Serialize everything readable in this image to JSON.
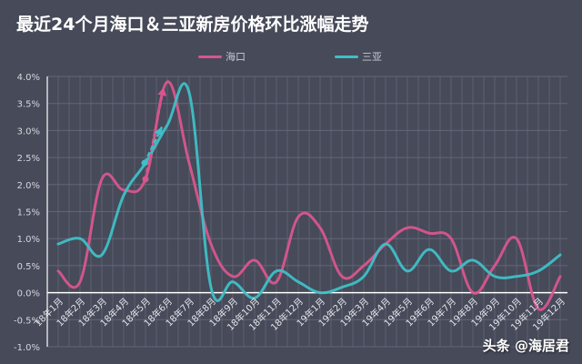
{
  "title": "最近24个月海口＆三亚新房价格环比涨幅走势",
  "legend": [
    {
      "label": "海口",
      "color": "#d9558e"
    },
    {
      "label": "三亚",
      "color": "#3fbfc6"
    }
  ],
  "watermark": "头条 @海居君",
  "chart_data": {
    "type": "line",
    "title": "最近24个月海口＆三亚新房价格环比涨幅走势",
    "xlabel": "",
    "ylabel": "",
    "ylim": [
      -1.0,
      4.0
    ],
    "yticks": [
      "4.0%",
      "3.5%",
      "3.0%",
      "2.5%",
      "2.0%",
      "1.5%",
      "1.0%",
      "0.5%",
      "0.0%",
      "-0.5%",
      "-1.0%"
    ],
    "grid": true,
    "legend_position": "top",
    "categories": [
      "18年1月",
      "18年2月",
      "18年3月",
      "18年4月",
      "18年5月",
      "18年6月",
      "18年7月",
      "18年8月",
      "18年9月",
      "18年10月",
      "18年11月",
      "18年12月",
      "19年1月",
      "19年2月",
      "19年3月",
      "19年4月",
      "19年5月",
      "19年6月",
      "19年7月",
      "19年8月",
      "19年9月",
      "19年10月",
      "19年11月",
      "19年12月"
    ],
    "series": [
      {
        "name": "海口",
        "color": "#d9558e",
        "values": [
          0.4,
          0.2,
          2.1,
          1.9,
          2.1,
          3.9,
          2.4,
          0.9,
          0.3,
          0.6,
          0.2,
          1.4,
          1.2,
          0.3,
          0.5,
          0.9,
          1.2,
          1.1,
          1.0,
          0.0,
          0.5,
          1.0,
          -0.3,
          0.3
        ]
      },
      {
        "name": "三亚",
        "color": "#3fbfc6",
        "values": [
          0.9,
          1.0,
          0.7,
          1.8,
          2.4,
          3.1,
          3.7,
          0.1,
          0.2,
          -0.1,
          0.4,
          0.2,
          0.0,
          0.1,
          0.3,
          0.9,
          0.4,
          0.8,
          0.4,
          0.6,
          0.3,
          0.3,
          0.4,
          0.7
        ]
      }
    ],
    "annotations": [
      {
        "type": "dashed-arrow",
        "series": "海口",
        "from": "18年5月",
        "to": "18年6月"
      },
      {
        "type": "dashed-arrow",
        "series": "三亚",
        "from": "18年5月",
        "to": "18年6月"
      }
    ]
  }
}
